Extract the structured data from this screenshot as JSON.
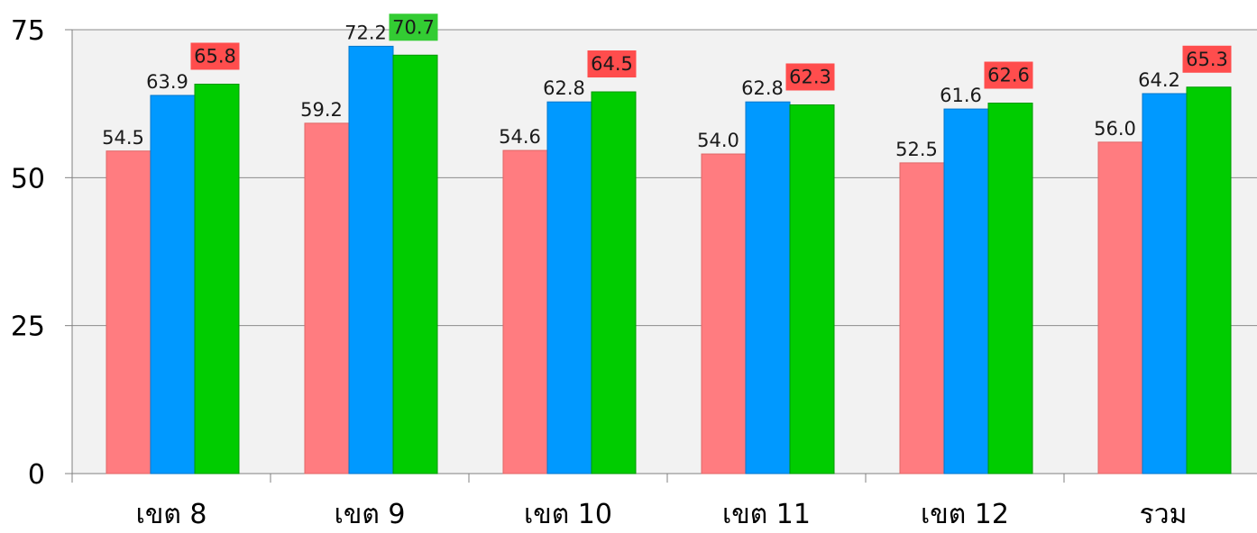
{
  "chart_data": {
    "type": "bar",
    "categories": [
      "เขต 8",
      "เขต 9",
      "เขต 10",
      "เขต 11",
      "เขต 12",
      "รวม"
    ],
    "series": [
      {
        "values": [
          54.5,
          59.2,
          54.6,
          54.0,
          52.5,
          56.0
        ],
        "color": "#ff7c80",
        "label_style": "plain"
      },
      {
        "values": [
          63.9,
          72.2,
          62.8,
          62.8,
          61.6,
          64.2
        ],
        "color": "#0099ff",
        "label_style": "plain"
      },
      {
        "values": [
          65.8,
          70.7,
          64.5,
          62.3,
          62.6,
          65.3
        ],
        "color": "#00cc00",
        "label_style": "boxed",
        "label_bg": [
          "#ff4d4d",
          "#33cc33",
          "#ff4d4d",
          "#ff4d4d",
          "#ff4d4d",
          "#ff4d4d"
        ]
      }
    ],
    "ylim": [
      0,
      75
    ],
    "yticks": [
      0,
      25,
      50,
      75
    ],
    "grid": true,
    "plot_background": "#f2f2f2",
    "gridline_color": "#8c8c8c",
    "legend": "none"
  }
}
